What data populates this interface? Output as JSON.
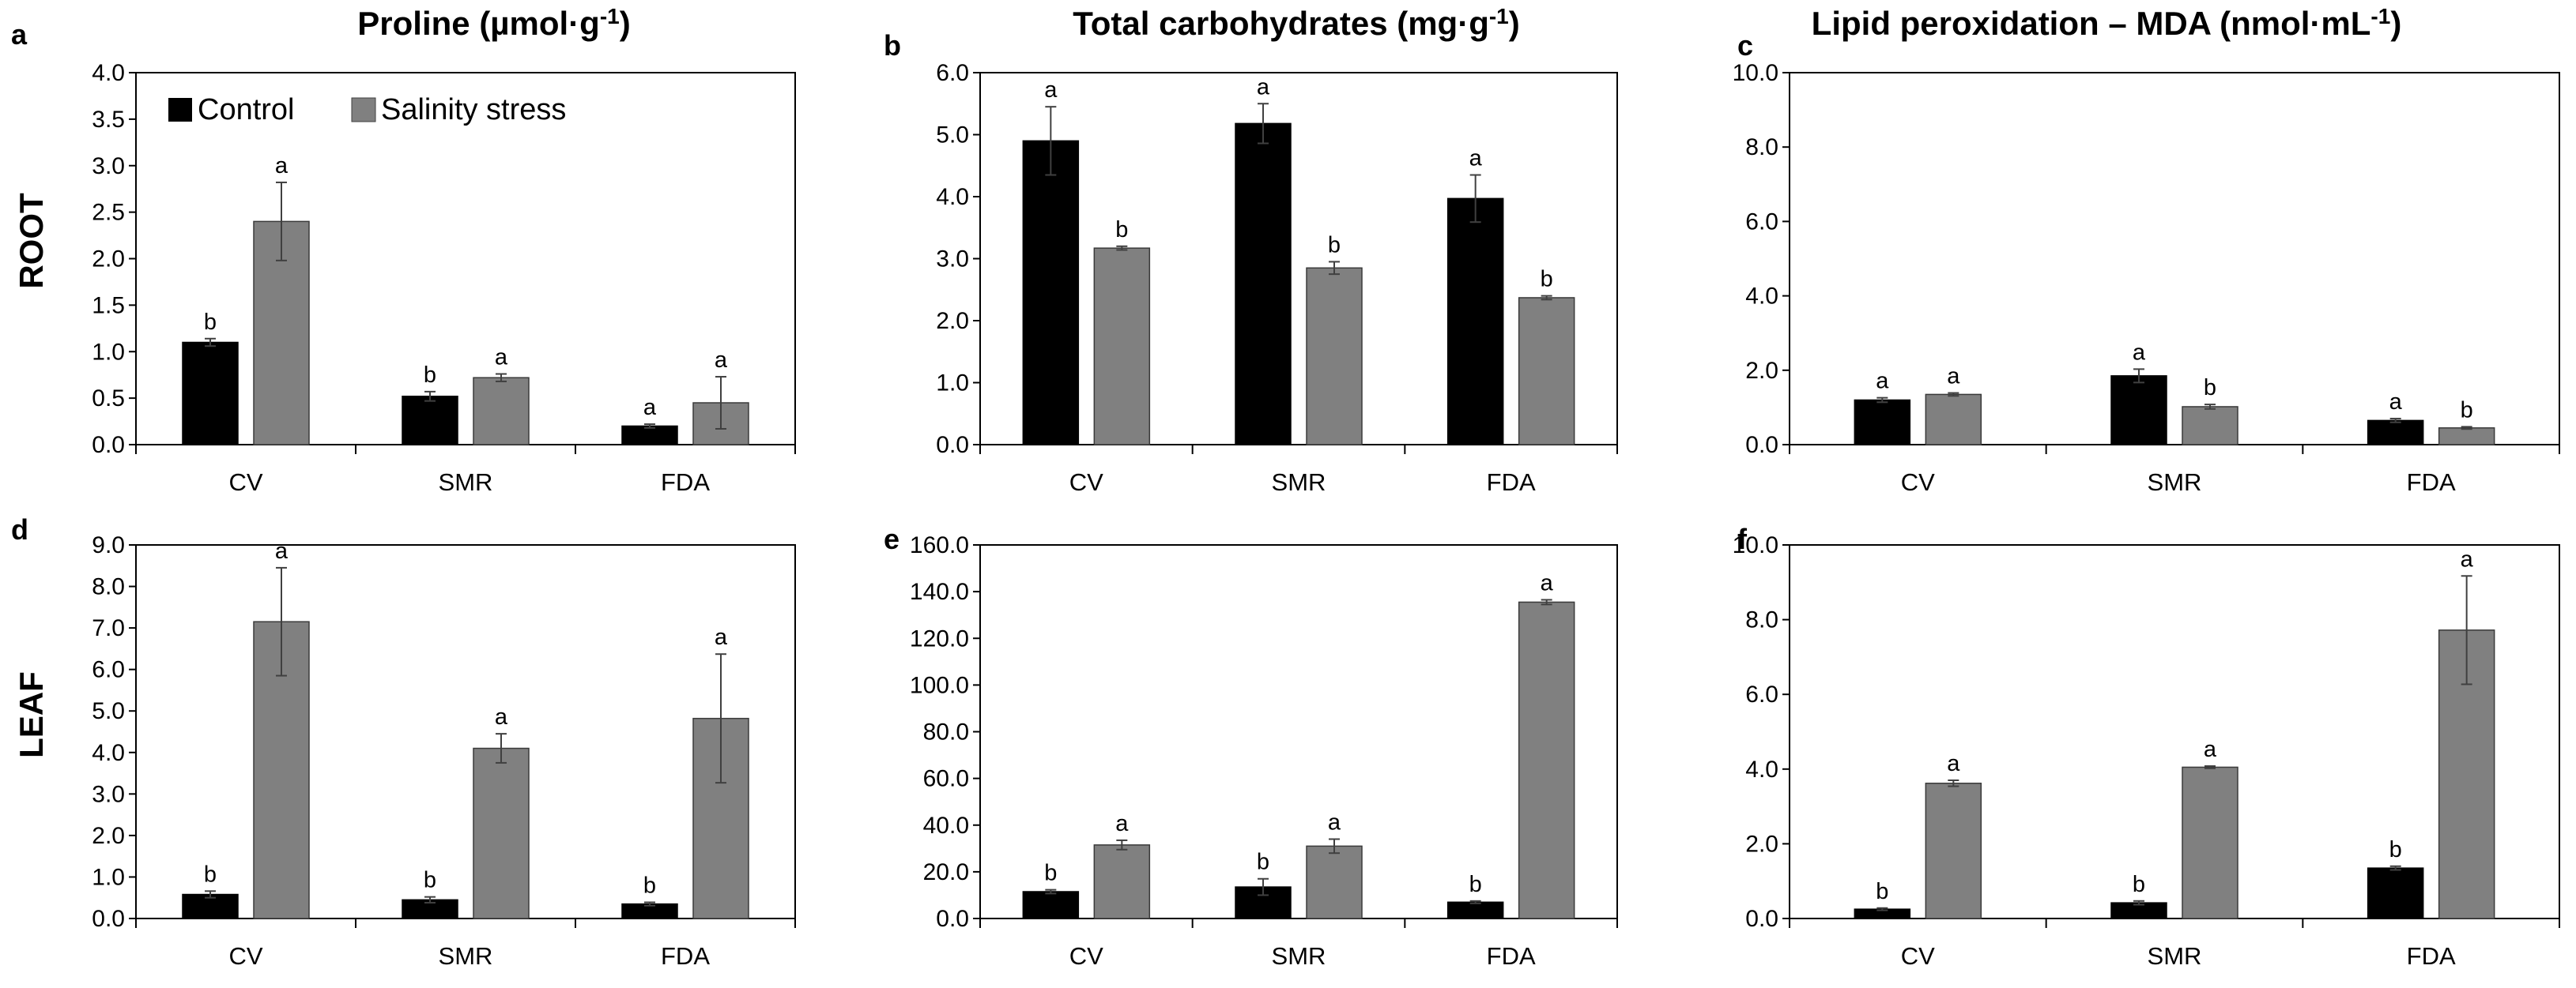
{
  "figure": {
    "column_titles": {
      "proline": {
        "main": "Proline (µmol·g",
        "exp": "-1",
        "close": ")"
      },
      "carbs": {
        "main": "Total carbohydrates (mg·g",
        "exp": "-1",
        "close": ")"
      },
      "mda": {
        "main": "Lipid peroxidation – MDA (nmol·mL",
        "exp": "-1",
        "close": ")"
      }
    },
    "row_labels": {
      "root": "ROOT",
      "leaf": "LEAF"
    },
    "legend": [
      {
        "name": "Control",
        "color": "#000000"
      },
      {
        "name": "Salinity stress",
        "color": "#808080"
      }
    ],
    "colors": {
      "control": "#000000",
      "salinity": "#808080",
      "error_bar": "#404040",
      "axis": "#000000"
    }
  },
  "chart_data": [
    {
      "panel": "a",
      "type": "bar",
      "row": "ROOT",
      "title": "Proline (µmol·g-1)",
      "categories": [
        "CV",
        "SMR",
        "FDA"
      ],
      "ylim": [
        0,
        4.0
      ],
      "ytick_step": 0.5,
      "ytick_labels": [
        "0.0",
        "0.5",
        "1.0",
        "1.5",
        "2.0",
        "2.5",
        "3.0",
        "3.5",
        "4.0"
      ],
      "series": [
        {
          "name": "Control",
          "values": [
            1.1,
            0.52,
            0.2
          ],
          "errors": [
            0.04,
            0.05,
            0.02
          ],
          "letters": [
            "b",
            "b",
            "a"
          ]
        },
        {
          "name": "Salinity stress",
          "values": [
            2.4,
            0.72,
            0.45
          ],
          "errors": [
            0.42,
            0.04,
            0.28
          ],
          "letters": [
            "a",
            "a",
            "a"
          ]
        }
      ]
    },
    {
      "panel": "b",
      "type": "bar",
      "row": "ROOT",
      "title": "Total carbohydrates (mg·g-1)",
      "categories": [
        "CV",
        "SMR",
        "FDA"
      ],
      "ylim": [
        0,
        6.0
      ],
      "ytick_step": 1.0,
      "ytick_labels": [
        "0.0",
        "1.0",
        "2.0",
        "3.0",
        "4.0",
        "5.0",
        "6.0"
      ],
      "series": [
        {
          "name": "Control",
          "values": [
            4.9,
            5.18,
            3.97
          ],
          "errors": [
            0.55,
            0.32,
            0.38
          ],
          "letters": [
            "a",
            "a",
            "a"
          ]
        },
        {
          "name": "Salinity stress",
          "values": [
            3.17,
            2.85,
            2.37
          ],
          "errors": [
            0.03,
            0.1,
            0.03
          ],
          "letters": [
            "b",
            "b",
            "b"
          ]
        }
      ]
    },
    {
      "panel": "c",
      "type": "bar",
      "row": "ROOT",
      "title": "Lipid peroxidation – MDA (nmol·mL-1)",
      "categories": [
        "CV",
        "SMR",
        "FDA"
      ],
      "ylim": [
        0,
        10.0
      ],
      "ytick_step": 2.0,
      "ytick_labels": [
        "0.0",
        "2.0",
        "4.0",
        "6.0",
        "8.0",
        "10.0"
      ],
      "series": [
        {
          "name": "Control",
          "values": [
            1.2,
            1.85,
            0.65
          ],
          "errors": [
            0.06,
            0.18,
            0.05
          ],
          "letters": [
            "a",
            "a",
            "a"
          ]
        },
        {
          "name": "Salinity stress",
          "values": [
            1.35,
            1.02,
            0.45
          ],
          "errors": [
            0.04,
            0.06,
            0.03
          ],
          "letters": [
            "a",
            "b",
            "b"
          ]
        }
      ]
    },
    {
      "panel": "d",
      "type": "bar",
      "row": "LEAF",
      "title": "Proline (µmol·g-1)",
      "categories": [
        "CV",
        "SMR",
        "FDA"
      ],
      "ylim": [
        0,
        9.0
      ],
      "ytick_step": 1.0,
      "ytick_labels": [
        "0.0",
        "1.0",
        "2.0",
        "3.0",
        "4.0",
        "5.0",
        "6.0",
        "7.0",
        "8.0",
        "9.0"
      ],
      "series": [
        {
          "name": "Control",
          "values": [
            0.58,
            0.45,
            0.35
          ],
          "errors": [
            0.08,
            0.07,
            0.04
          ],
          "letters": [
            "b",
            "b",
            "b"
          ]
        },
        {
          "name": "Salinity stress",
          "values": [
            7.15,
            4.1,
            4.82
          ],
          "errors": [
            1.3,
            0.35,
            1.55
          ],
          "letters": [
            "a",
            "a",
            "a"
          ]
        }
      ]
    },
    {
      "panel": "e",
      "type": "bar",
      "row": "LEAF",
      "title": "Total carbohydrates (mg·g-1)",
      "categories": [
        "CV",
        "SMR",
        "FDA"
      ],
      "ylim": [
        0,
        160.0
      ],
      "ytick_step": 20.0,
      "ytick_labels": [
        "0.0",
        "20.0",
        "40.0",
        "60.0",
        "80.0",
        "100.0",
        "120.0",
        "140.0",
        "160.0"
      ],
      "series": [
        {
          "name": "Control",
          "values": [
            11.5,
            13.5,
            7.0
          ],
          "errors": [
            0.8,
            3.5,
            0.5
          ],
          "letters": [
            "b",
            "b",
            "b"
          ]
        },
        {
          "name": "Salinity stress",
          "values": [
            31.5,
            31.0,
            135.5
          ],
          "errors": [
            2.0,
            3.0,
            1.0
          ],
          "letters": [
            "a",
            "a",
            "a"
          ]
        }
      ]
    },
    {
      "panel": "f",
      "type": "bar",
      "row": "LEAF",
      "title": "Lipid peroxidation – MDA (nmol·mL-1)",
      "categories": [
        "CV",
        "SMR",
        "FDA"
      ],
      "ylim": [
        0,
        10.0
      ],
      "ytick_step": 2.0,
      "ytick_labels": [
        "0.0",
        "2.0",
        "4.0",
        "6.0",
        "8.0",
        "10.0"
      ],
      "series": [
        {
          "name": "Control",
          "values": [
            0.25,
            0.42,
            1.35
          ],
          "errors": [
            0.03,
            0.05,
            0.05
          ],
          "letters": [
            "b",
            "b",
            "b"
          ]
        },
        {
          "name": "Salinity stress",
          "values": [
            3.62,
            4.05,
            7.72
          ],
          "errors": [
            0.08,
            0.03,
            1.45
          ],
          "letters": [
            "a",
            "a",
            "a"
          ]
        }
      ]
    }
  ]
}
